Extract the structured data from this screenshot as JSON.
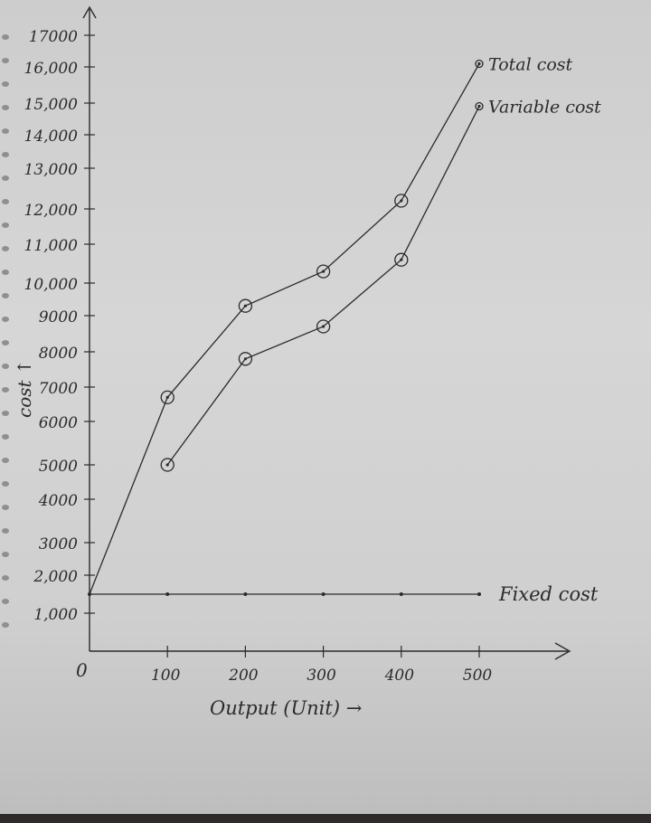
{
  "chart_data": {
    "type": "line",
    "ylabel": "cost ↑",
    "xlabel": "Output (Unit) →",
    "origin_label": "0",
    "y_tick_labels": [
      "1,000",
      "2,000",
      "3000",
      "4000",
      "5000",
      "6000",
      "7000",
      "8000",
      "9000",
      "10,000",
      "11,000",
      "12,000",
      "13,000",
      "14,000",
      "15,000",
      "16,000",
      "17000"
    ],
    "x_tick_labels": [
      "100",
      "200",
      "300",
      "400",
      "500"
    ],
    "series": [
      {
        "name": "Total cost",
        "x": [
          0,
          100,
          200,
          300,
          400,
          500
        ],
        "y": [
          1500,
          6700,
          9300,
          10300,
          12200,
          16100
        ]
      },
      {
        "name": "Variable cost",
        "x": [
          100,
          200,
          300,
          400,
          500
        ],
        "y": [
          5000,
          7800,
          8700,
          10600,
          14900
        ]
      },
      {
        "name": "Fixed cost",
        "x": [
          0,
          100,
          200,
          300,
          400,
          500
        ],
        "y": [
          1500,
          1500,
          1500,
          1500,
          1500,
          1500
        ]
      }
    ],
    "grid": false,
    "legend": "labels at line ends"
  }
}
